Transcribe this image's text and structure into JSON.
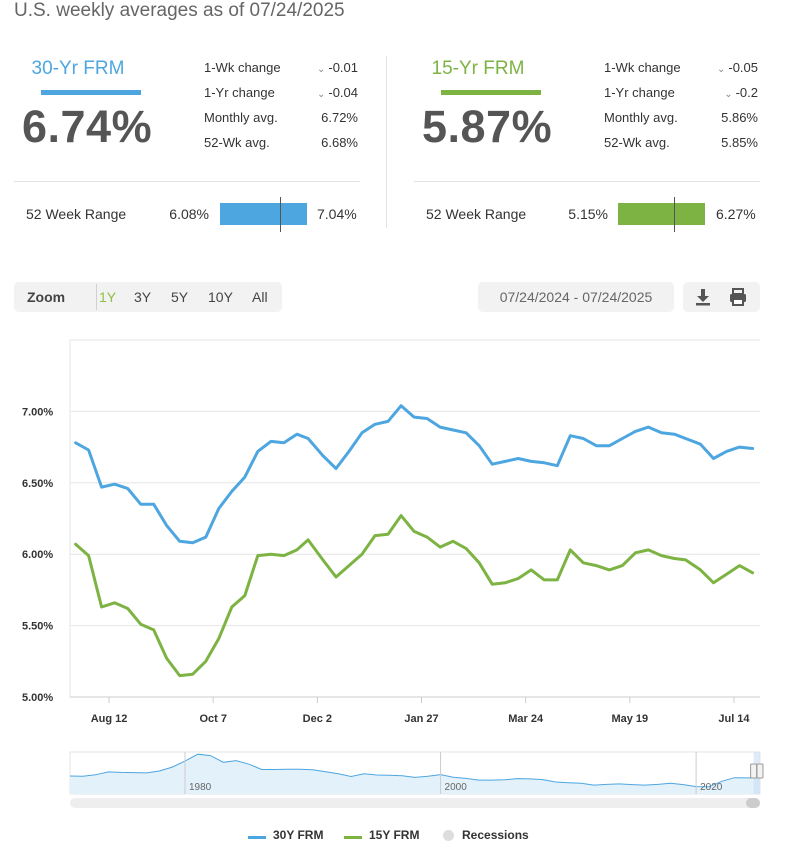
{
  "header": {
    "title": "U.S. weekly averages as of 07/24/2025"
  },
  "cards": [
    {
      "name": "30-Yr FRM",
      "color": "#4da6e0",
      "rate": "6.74%",
      "stats": [
        {
          "label": "1-Wk change",
          "value": "-0.01",
          "direction": "down"
        },
        {
          "label": "1-Yr change",
          "value": "-0.04",
          "direction": "down"
        },
        {
          "label": "Monthly avg.",
          "value": "6.72%"
        },
        {
          "label": "52-Wk avg.",
          "value": "6.68%"
        }
      ],
      "range_label": "52 Week Range",
      "range_min": "6.08%",
      "range_max": "7.04%",
      "range_current": 6.74
    },
    {
      "name": "15-Yr FRM",
      "color": "#7cb342",
      "rate": "5.87%",
      "stats": [
        {
          "label": "1-Wk change",
          "value": "-0.05",
          "direction": "down"
        },
        {
          "label": "1-Yr change",
          "value": "-0.2",
          "direction": "down"
        },
        {
          "label": "Monthly avg.",
          "value": "5.86%"
        },
        {
          "label": "52-Wk avg.",
          "value": "5.85%"
        }
      ],
      "range_label": "52 Week Range",
      "range_min": "5.15%",
      "range_max": "6.27%",
      "range_current": 5.87
    }
  ],
  "zoom": {
    "label": "Zoom",
    "options": [
      "1Y",
      "3Y",
      "5Y",
      "10Y",
      "All"
    ],
    "active": "1Y"
  },
  "date_range": "07/24/2024 - 07/24/2025",
  "tools": {
    "download_icon": "download-icon",
    "print_icon": "print-icon"
  },
  "chart_data": {
    "type": "line",
    "x": [
      "07/25/24",
      "08/01/24",
      "08/08/24",
      "08/15/24",
      "08/22/24",
      "08/29/24",
      "09/05/24",
      "09/12/24",
      "09/19/24",
      "09/26/24",
      "10/03/24",
      "10/10/24",
      "10/17/24",
      "10/24/24",
      "10/31/24",
      "11/07/24",
      "11/14/24",
      "11/21/24",
      "11/27/24",
      "12/05/24",
      "12/12/24",
      "12/19/24",
      "12/26/24",
      "01/02/25",
      "01/09/25",
      "01/16/25",
      "01/23/25",
      "01/30/25",
      "02/06/25",
      "02/13/25",
      "02/20/25",
      "02/27/25",
      "03/06/25",
      "03/13/25",
      "03/20/25",
      "03/27/25",
      "04/03/25",
      "04/10/25",
      "04/17/25",
      "04/24/25",
      "05/01/25",
      "05/08/25",
      "05/15/25",
      "05/22/25",
      "05/29/25",
      "06/05/25",
      "06/12/25",
      "06/18/25",
      "06/26/25",
      "07/03/25",
      "07/10/25",
      "07/17/25",
      "07/24/25"
    ],
    "series": [
      {
        "name": "30Y FRM",
        "color": "#4da6e0",
        "values": [
          6.78,
          6.73,
          6.47,
          6.49,
          6.46,
          6.35,
          6.35,
          6.2,
          6.09,
          6.08,
          6.12,
          6.32,
          6.44,
          6.54,
          6.72,
          6.79,
          6.78,
          6.84,
          6.81,
          6.69,
          6.6,
          6.72,
          6.85,
          6.91,
          6.93,
          7.04,
          6.96,
          6.95,
          6.89,
          6.87,
          6.85,
          6.76,
          6.63,
          6.65,
          6.67,
          6.65,
          6.64,
          6.62,
          6.83,
          6.81,
          6.76,
          6.76,
          6.81,
          6.86,
          6.89,
          6.85,
          6.84,
          6.81,
          6.77,
          6.67,
          6.72,
          6.75,
          6.74
        ]
      },
      {
        "name": "15Y FRM",
        "color": "#7cb342",
        "values": [
          6.07,
          5.99,
          5.63,
          5.66,
          5.62,
          5.51,
          5.47,
          5.27,
          5.15,
          5.16,
          5.25,
          5.41,
          5.63,
          5.71,
          5.99,
          6.0,
          5.99,
          6.03,
          6.1,
          5.96,
          5.84,
          5.92,
          6.0,
          6.13,
          6.14,
          6.27,
          6.16,
          6.12,
          6.05,
          6.09,
          6.04,
          5.94,
          5.79,
          5.8,
          5.83,
          5.89,
          5.82,
          5.82,
          6.03,
          5.94,
          5.92,
          5.89,
          5.92,
          6.01,
          6.03,
          5.99,
          5.97,
          5.96,
          5.89,
          5.8,
          5.86,
          5.92,
          5.87
        ]
      }
    ],
    "xticks": [
      {
        "label": "Aug 12",
        "date": "08/12/24"
      },
      {
        "label": "Oct 7",
        "date": "10/07/24"
      },
      {
        "label": "Dec 2",
        "date": "12/02/24"
      },
      {
        "label": "Jan 27",
        "date": "01/27/25"
      },
      {
        "label": "Mar 24",
        "date": "03/24/25"
      },
      {
        "label": "May 19",
        "date": "05/19/25"
      },
      {
        "label": "Jul 14",
        "date": "07/14/25"
      }
    ],
    "yticks": [
      {
        "label": "5.00%",
        "value": 5.0
      },
      {
        "label": "5.50%",
        "value": 5.5
      },
      {
        "label": "6.00%",
        "value": 6.0
      },
      {
        "label": "6.50%",
        "value": 6.5
      },
      {
        "label": "7.00%",
        "value": 7.0
      }
    ],
    "ylim": [
      5.0,
      7.5
    ],
    "xlim": [
      "07/22/24",
      "07/28/25"
    ],
    "grid": true,
    "legend": {
      "placement": "bottom",
      "entries": [
        {
          "name": "30Y FRM",
          "color": "#4da6e0"
        },
        {
          "name": "15Y FRM",
          "color": "#7cb342"
        },
        {
          "name": "Recessions",
          "color": "#dddddd"
        }
      ]
    },
    "navigator": {
      "labels": [
        "1980",
        "2000",
        "2020"
      ],
      "label_years": [
        1980,
        2000,
        2020
      ],
      "year_range": [
        1971,
        2025
      ],
      "years": [
        1971,
        1972,
        1973,
        1974,
        1975,
        1976,
        1977,
        1978,
        1979,
        1980,
        1981,
        1982,
        1983,
        1984,
        1985,
        1986,
        1987,
        1988,
        1989,
        1990,
        1991,
        1992,
        1993,
        1994,
        1995,
        1996,
        1997,
        1998,
        1999,
        2000,
        2001,
        2002,
        2003,
        2004,
        2005,
        2006,
        2007,
        2008,
        2009,
        2010,
        2011,
        2012,
        2013,
        2014,
        2015,
        2016,
        2017,
        2018,
        2019,
        2020,
        2021,
        2022,
        2023,
        2024,
        2025
      ],
      "values": [
        7.5,
        7.4,
        8.0,
        9.2,
        9.0,
        8.9,
        8.8,
        9.6,
        11.2,
        13.7,
        16.6,
        16.0,
        13.2,
        13.9,
        12.4,
        10.2,
        10.2,
        10.3,
        10.3,
        10.1,
        9.3,
        8.4,
        7.3,
        8.4,
        7.9,
        7.8,
        7.6,
        6.9,
        7.4,
        8.1,
        7.0,
        6.5,
        5.8,
        5.8,
        5.9,
        6.4,
        6.3,
        6.0,
        5.0,
        4.7,
        4.5,
        3.7,
        4.0,
        4.2,
        3.9,
        3.7,
        4.0,
        4.5,
        3.9,
        3.1,
        3.0,
        5.3,
        6.8,
        6.7,
        6.8
      ],
      "selected_from": 2024.5
    }
  }
}
